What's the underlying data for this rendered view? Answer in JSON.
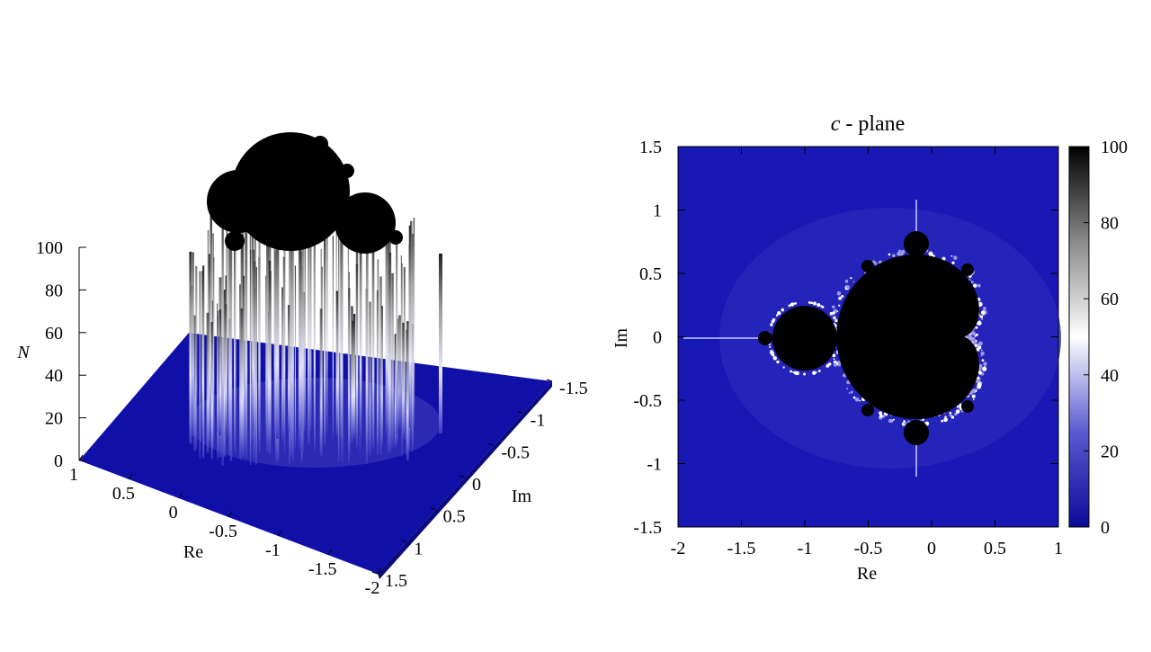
{
  "chart_data": [
    {
      "type": "surface3d",
      "zlabel": "N",
      "xlabel": "Re",
      "ylabel": "Im",
      "z_ticks": [
        "0",
        "20",
        "40",
        "60",
        "80",
        "100"
      ],
      "re_ticks": [
        "1",
        "0.5",
        "0",
        "-0.5",
        "-1",
        "-1.5",
        "-2"
      ],
      "im_ticks": [
        "-1.5",
        "-1",
        "-0.5",
        "0",
        "0.5",
        "1",
        "1.5"
      ],
      "re_range": [
        -2,
        1
      ],
      "im_range": [
        -1.5,
        1.5
      ],
      "z_range": [
        0,
        100
      ],
      "max_iterations": 100
    },
    {
      "type": "heatmap",
      "title_italic": "c",
      "title_rest": " - plane",
      "xlabel": "Re",
      "ylabel": "Im",
      "x_ticks": [
        "-2",
        "-1.5",
        "-1",
        "-0.5",
        "0",
        "0.5",
        "1"
      ],
      "y_ticks": [
        "1.5",
        "1",
        "0.5",
        "0",
        "-0.5",
        "-1",
        "-1.5"
      ],
      "xlim": [
        -2,
        1
      ],
      "ylim": [
        -1.5,
        1.5
      ],
      "colorbar_ticks": [
        "100",
        "80",
        "60",
        "40",
        "20",
        "0"
      ],
      "colorbar_range": [
        0,
        100
      ],
      "max_iterations": 100
    }
  ],
  "colors": {
    "background": "#1515b0",
    "low": "#0a0a9a",
    "mid": "#ffffff",
    "high": "#000000"
  }
}
